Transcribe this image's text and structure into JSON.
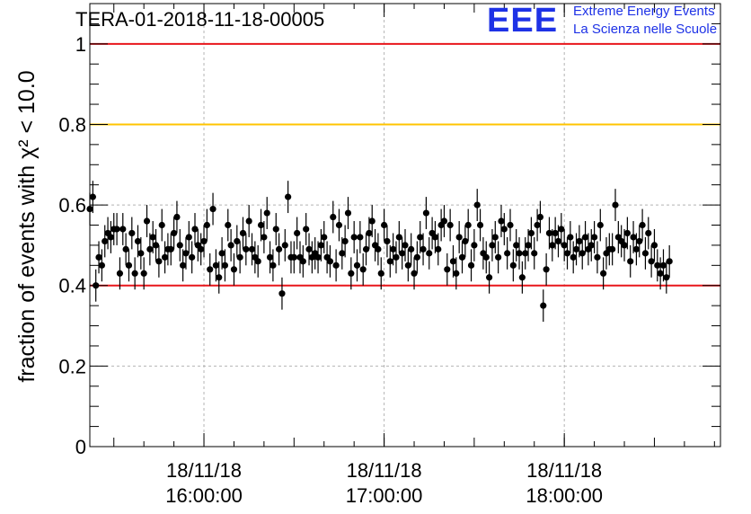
{
  "header": {
    "title": "TERA-01-2018-11-18-00005"
  },
  "logo": {
    "mark": "EEE",
    "line1": "Extreme Energy Events",
    "line2": "La Scienza nelle Scuole",
    "color": "#1e32e6"
  },
  "chart_data": {
    "type": "scatter",
    "title": "TERA-01-2018-11-18-00005",
    "ylabel": "fraction of events with χ² < 10.0",
    "xlabel": "",
    "xlim": [
      "2018-11-18 15:22:00",
      "2018-11-18 18:52:00"
    ],
    "ylim": [
      0,
      1.1
    ],
    "y_ticks": [
      0,
      0.2,
      0.4,
      0.6,
      0.8,
      1
    ],
    "y_tick_labels": [
      "0",
      "0.2",
      "0.4",
      "0.6",
      "0.8",
      "1"
    ],
    "x_ticks": [
      "2018-11-18 16:00:00",
      "2018-11-18 17:00:00",
      "2018-11-18 18:00:00"
    ],
    "x_tick_labels": [
      {
        "date": "18/11/18",
        "time": "16:00:00"
      },
      {
        "date": "18/11/18",
        "time": "17:00:00"
      },
      {
        "date": "18/11/18",
        "time": "18:00:00"
      }
    ],
    "grid": true,
    "reference_lines": [
      {
        "y": 1.0,
        "color": "#e8161b"
      },
      {
        "y": 0.8,
        "color": "#ffc400"
      },
      {
        "y": 0.4,
        "color": "#e8161b"
      }
    ],
    "series": [
      {
        "marker_color": "#000000",
        "time_start": "2018-11-18 15:22:00",
        "interval_seconds": 60,
        "error": 0.04,
        "y": [
          0.59,
          0.62,
          0.4,
          0.47,
          0.45,
          0.51,
          0.53,
          0.52,
          0.54,
          0.54,
          0.43,
          0.54,
          0.49,
          0.45,
          0.53,
          0.43,
          0.51,
          0.48,
          0.43,
          0.56,
          0.49,
          0.52,
          0.5,
          0.46,
          0.55,
          0.47,
          0.49,
          0.49,
          0.53,
          0.57,
          0.5,
          0.45,
          0.48,
          0.52,
          0.47,
          0.54,
          0.5,
          0.49,
          0.51,
          0.55,
          0.44,
          0.59,
          0.45,
          0.42,
          0.48,
          0.45,
          0.55,
          0.5,
          0.44,
          0.51,
          0.47,
          0.53,
          0.49,
          0.56,
          0.49,
          0.47,
          0.46,
          0.55,
          0.52,
          0.58,
          0.47,
          0.45,
          0.54,
          0.49,
          0.38,
          0.5,
          0.62,
          0.47,
          0.47,
          0.53,
          0.47,
          0.46,
          0.54,
          0.49,
          0.47,
          0.48,
          0.47,
          0.5,
          0.52,
          0.47,
          0.46,
          0.57,
          0.45,
          0.55,
          0.48,
          0.51,
          0.58,
          0.43,
          0.52,
          0.45,
          0.52,
          0.44,
          0.49,
          0.53,
          0.56,
          0.5,
          0.49,
          0.43,
          0.55,
          0.51,
          0.46,
          0.49,
          0.47,
          0.52,
          0.48,
          0.5,
          0.45,
          0.49,
          0.43,
          0.47,
          0.52,
          0.49,
          0.58,
          0.48,
          0.53,
          0.52,
          0.49,
          0.55,
          0.56,
          0.44,
          0.55,
          0.46,
          0.43,
          0.52,
          0.47,
          0.51,
          0.55,
          0.45,
          0.5,
          0.6,
          0.55,
          0.48,
          0.47,
          0.42,
          0.5,
          0.52,
          0.47,
          0.56,
          0.54,
          0.48,
          0.55,
          0.45,
          0.5,
          0.48,
          0.42,
          0.48,
          0.5,
          0.53,
          0.48,
          0.55,
          0.57,
          0.35,
          0.44,
          0.53,
          0.5,
          0.53,
          0.51,
          0.54,
          0.5,
          0.48,
          0.52,
          0.47,
          0.49,
          0.51,
          0.48,
          0.52,
          0.49,
          0.5,
          0.52,
          0.47,
          0.55,
          0.43,
          0.48,
          0.49,
          0.49,
          0.6,
          0.52,
          0.51,
          0.5,
          0.53,
          0.46,
          0.52,
          0.49,
          0.51,
          0.55,
          0.48,
          0.53,
          0.46,
          0.5,
          0.45,
          0.43,
          0.45,
          0.42,
          0.46
        ]
      }
    ]
  }
}
